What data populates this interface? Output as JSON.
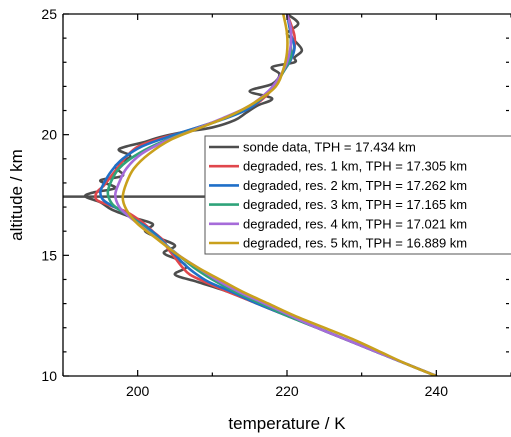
{
  "chart_data": {
    "type": "line",
    "xlabel": "temperature / K",
    "ylabel": "altitude / km",
    "xlim": [
      190,
      250
    ],
    "ylim": [
      10,
      25
    ],
    "x_ticks": [
      200,
      220,
      240
    ],
    "y_ticks": [
      10,
      15,
      20,
      25
    ],
    "grid": false,
    "legend_position": "right",
    "tph_line": {
      "altitude": 17.434
    },
    "series": [
      {
        "name": "sonde data, TPH = 17.434 km",
        "color": "#4d4d4d",
        "points": [
          [
            240,
            10
          ],
          [
            236,
            10.5
          ],
          [
            232,
            11
          ],
          [
            228,
            11.5
          ],
          [
            224,
            12
          ],
          [
            220,
            12.5
          ],
          [
            216,
            13
          ],
          [
            212,
            13.5
          ],
          [
            208,
            13.9
          ],
          [
            205,
            14.2
          ],
          [
            206.5,
            14.5
          ],
          [
            205.5,
            14.8
          ],
          [
            203.5,
            15.1
          ],
          [
            205,
            15.4
          ],
          [
            203,
            15.7
          ],
          [
            201,
            16
          ],
          [
            202,
            16.3
          ],
          [
            199,
            16.6
          ],
          [
            196.5,
            16.9
          ],
          [
            195,
            17.2
          ],
          [
            193,
            17.434
          ],
          [
            194,
            17.6
          ],
          [
            197,
            17.8
          ],
          [
            195,
            18.1
          ],
          [
            198,
            18.3
          ],
          [
            197,
            18.7
          ],
          [
            199,
            19.1
          ],
          [
            197.5,
            19.4
          ],
          [
            201,
            19.7
          ],
          [
            203,
            19.9
          ],
          [
            206,
            20.1
          ],
          [
            210,
            20.3
          ],
          [
            213,
            20.6
          ],
          [
            214.5,
            20.9
          ],
          [
            216,
            21.2
          ],
          [
            218,
            21.5
          ],
          [
            215,
            21.8
          ],
          [
            218,
            22.1
          ],
          [
            219,
            22.5
          ],
          [
            218,
            22.8
          ],
          [
            221,
            23
          ],
          [
            221,
            23.2
          ],
          [
            222,
            23.5
          ],
          [
            221,
            23.9
          ],
          [
            220,
            24.2
          ],
          [
            221.5,
            24.6
          ],
          [
            220,
            25
          ]
        ]
      },
      {
        "name": "degraded, res. 1 km, TPH = 17.305 km",
        "color": "#e0474c",
        "points": [
          [
            240,
            10
          ],
          [
            236,
            10.5
          ],
          [
            232,
            11
          ],
          [
            228,
            11.5
          ],
          [
            224,
            12
          ],
          [
            220,
            12.5
          ],
          [
            216,
            13
          ],
          [
            212,
            13.5
          ],
          [
            209,
            13.9
          ],
          [
            207,
            14.2
          ],
          [
            206,
            14.5
          ],
          [
            205,
            14.9
          ],
          [
            204,
            15.3
          ],
          [
            203.5,
            15.6
          ],
          [
            202,
            16
          ],
          [
            200.5,
            16.4
          ],
          [
            198.5,
            16.8
          ],
          [
            196,
            17.1
          ],
          [
            194.5,
            17.305
          ],
          [
            194.5,
            17.6
          ],
          [
            195.5,
            17.9
          ],
          [
            196.5,
            18.3
          ],
          [
            197.5,
            18.7
          ],
          [
            198.5,
            19.1
          ],
          [
            200,
            19.5
          ],
          [
            202.5,
            19.8
          ],
          [
            206,
            20.1
          ],
          [
            210,
            20.5
          ],
          [
            213.5,
            20.9
          ],
          [
            216,
            21.3
          ],
          [
            217.5,
            21.7
          ],
          [
            218.5,
            22.1
          ],
          [
            219.5,
            22.6
          ],
          [
            220.5,
            23.1
          ],
          [
            221,
            23.6
          ],
          [
            221,
            24.1
          ],
          [
            220.5,
            24.6
          ],
          [
            220,
            25
          ]
        ]
      },
      {
        "name": "degraded, res. 2 km, TPH = 17.262 km",
        "color": "#1f6fc8",
        "points": [
          [
            240,
            10
          ],
          [
            236,
            10.5
          ],
          [
            232,
            11
          ],
          [
            228,
            11.5
          ],
          [
            224,
            12
          ],
          [
            220,
            12.5
          ],
          [
            216,
            13
          ],
          [
            212.5,
            13.5
          ],
          [
            209.5,
            13.9
          ],
          [
            207.5,
            14.3
          ],
          [
            206,
            14.7
          ],
          [
            204.5,
            15.2
          ],
          [
            203,
            15.7
          ],
          [
            201.5,
            16.1
          ],
          [
            199.5,
            16.5
          ],
          [
            197.5,
            16.9
          ],
          [
            195.5,
            17.262
          ],
          [
            195,
            17.6
          ],
          [
            195.5,
            18
          ],
          [
            196.5,
            18.5
          ],
          [
            198,
            19
          ],
          [
            200.5,
            19.5
          ],
          [
            204,
            19.9
          ],
          [
            208,
            20.3
          ],
          [
            212,
            20.7
          ],
          [
            215,
            21.1
          ],
          [
            217,
            21.6
          ],
          [
            218.5,
            22.1
          ],
          [
            219.5,
            22.6
          ],
          [
            220.5,
            23.1
          ],
          [
            221,
            23.6
          ],
          [
            220.5,
            24.2
          ],
          [
            220,
            25
          ]
        ]
      },
      {
        "name": "degraded, res. 3 km, TPH = 17.165 km",
        "color": "#2fa37a",
        "points": [
          [
            240,
            10
          ],
          [
            236,
            10.5
          ],
          [
            232,
            11
          ],
          [
            228,
            11.5
          ],
          [
            224,
            12
          ],
          [
            220,
            12.5
          ],
          [
            216.5,
            13
          ],
          [
            213,
            13.5
          ],
          [
            210,
            14
          ],
          [
            207.5,
            14.5
          ],
          [
            205.5,
            15
          ],
          [
            203.5,
            15.5
          ],
          [
            201.5,
            16
          ],
          [
            199.5,
            16.5
          ],
          [
            197.5,
            16.9
          ],
          [
            196.5,
            17.165
          ],
          [
            196,
            17.6
          ],
          [
            196.5,
            18.1
          ],
          [
            197.5,
            18.6
          ],
          [
            199.5,
            19.1
          ],
          [
            202.5,
            19.6
          ],
          [
            206.5,
            20.1
          ],
          [
            211,
            20.6
          ],
          [
            214.5,
            21.1
          ],
          [
            217,
            21.6
          ],
          [
            218.5,
            22.1
          ],
          [
            219.5,
            22.6
          ],
          [
            220.5,
            23.2
          ],
          [
            220.5,
            23.8
          ],
          [
            220.5,
            24.4
          ],
          [
            220,
            25
          ]
        ]
      },
      {
        "name": "degraded, res. 4 km, TPH = 17.021 km",
        "color": "#a66bd9",
        "points": [
          [
            240,
            10
          ],
          [
            236,
            10.5
          ],
          [
            232,
            11
          ],
          [
            228,
            11.5
          ],
          [
            224,
            12
          ],
          [
            220.5,
            12.5
          ],
          [
            217,
            13
          ],
          [
            213.5,
            13.5
          ],
          [
            210.5,
            14
          ],
          [
            208,
            14.5
          ],
          [
            205.5,
            15
          ],
          [
            203,
            15.6
          ],
          [
            200.5,
            16.2
          ],
          [
            198.5,
            16.7
          ],
          [
            197.5,
            17.021
          ],
          [
            197,
            17.5
          ],
          [
            197.5,
            18
          ],
          [
            198.5,
            18.6
          ],
          [
            200.5,
            19.2
          ],
          [
            203.5,
            19.7
          ],
          [
            207.5,
            20.2
          ],
          [
            211.5,
            20.7
          ],
          [
            215,
            21.2
          ],
          [
            217.5,
            21.8
          ],
          [
            219,
            22.4
          ],
          [
            220,
            23
          ],
          [
            220.5,
            23.7
          ],
          [
            220.5,
            24.4
          ],
          [
            220,
            25
          ]
        ]
      },
      {
        "name": "degraded, res. 5 km, TPH = 16.889 km",
        "color": "#c9a01c",
        "points": [
          [
            240,
            10
          ],
          [
            236,
            10.5
          ],
          [
            232.5,
            11
          ],
          [
            229,
            11.5
          ],
          [
            225,
            12
          ],
          [
            221,
            12.5
          ],
          [
            217.5,
            13
          ],
          [
            214,
            13.5
          ],
          [
            211,
            14
          ],
          [
            208,
            14.5
          ],
          [
            205,
            15.1
          ],
          [
            202.5,
            15.7
          ],
          [
            200,
            16.3
          ],
          [
            198.5,
            16.889
          ],
          [
            198,
            17.4
          ],
          [
            198.5,
            18
          ],
          [
            199.5,
            18.6
          ],
          [
            201.5,
            19.2
          ],
          [
            204.5,
            19.8
          ],
          [
            208.5,
            20.3
          ],
          [
            212.5,
            20.8
          ],
          [
            216,
            21.4
          ],
          [
            218.5,
            22
          ],
          [
            219.5,
            22.7
          ],
          [
            220,
            23.4
          ],
          [
            220,
            24.2
          ],
          [
            219.5,
            25
          ]
        ]
      }
    ]
  }
}
